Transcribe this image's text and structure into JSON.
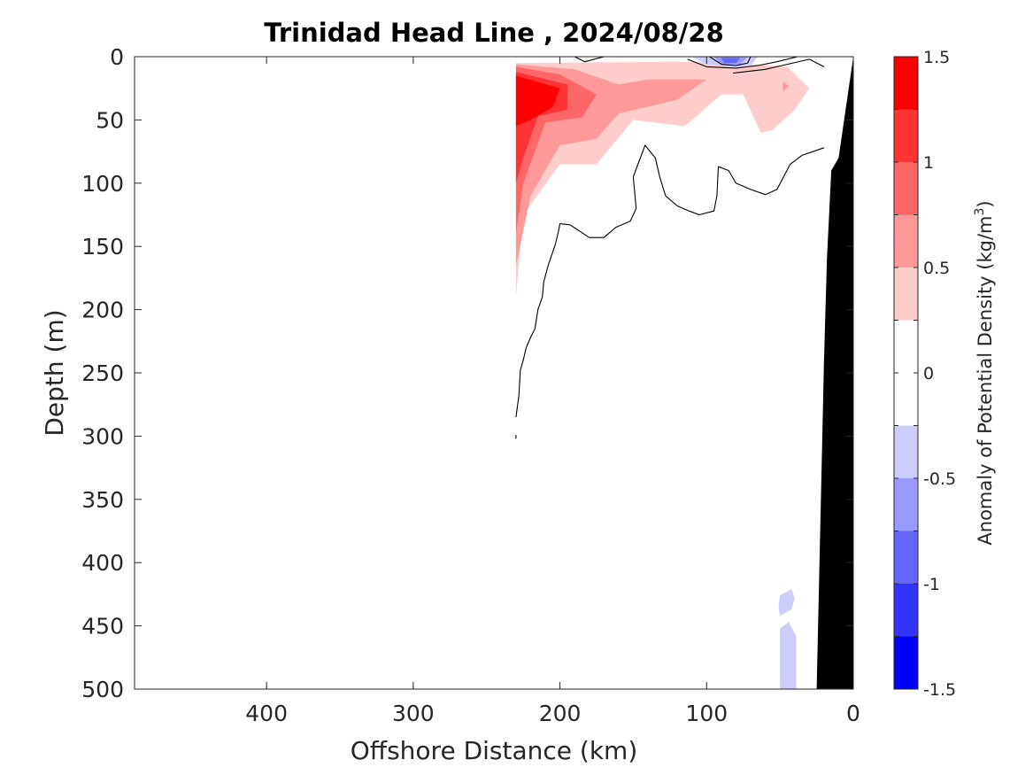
{
  "chart_data": {
    "type": "contour",
    "title": "Trinidad Head Line , 2024/08/28",
    "xlabel": "Offshore Distance (km)",
    "ylabel": "Depth (m)",
    "xlim": [
      490,
      0
    ],
    "ylim": [
      0,
      500
    ],
    "xticks": [
      400,
      300,
      200,
      100,
      0
    ],
    "yticks": [
      0,
      50,
      100,
      150,
      200,
      250,
      300,
      350,
      400,
      450,
      500
    ],
    "colorbar": {
      "label": "Anomaly of Potential Density (kg/m",
      "label_sup": "3",
      "label_close": ")",
      "range": [
        -1.5,
        1.5
      ],
      "ticks": [
        "1.5",
        "1",
        "0.5",
        "0",
        "-0.5",
        "-1",
        "-1.5"
      ],
      "levels": [
        -1.5,
        -1.25,
        -1.0,
        -0.75,
        -0.5,
        -0.25,
        0.0,
        0.25,
        0.5,
        0.75,
        1.0,
        1.25,
        1.5
      ],
      "colors": [
        "#0000ff",
        "#3333ff",
        "#6666ff",
        "#9999ff",
        "#ccccff",
        "#ffffff",
        "#ffffff",
        "#ffcccc",
        "#ff9999",
        "#ff6666",
        "#ff3333",
        "#ff0000"
      ]
    },
    "filled_regions": [
      {
        "level": 0.25,
        "color": "#ffcccc",
        "points": [
          [
            230,
            5
          ],
          [
            120,
            4
          ],
          [
            80,
            5
          ],
          [
            45,
            8
          ],
          [
            30,
            25
          ],
          [
            40,
            42
          ],
          [
            55,
            58
          ],
          [
            63,
            60
          ],
          [
            75,
            30
          ],
          [
            90,
            30
          ],
          [
            115,
            55
          ],
          [
            150,
            50
          ],
          [
            175,
            85
          ],
          [
            200,
            85
          ],
          [
            225,
            125
          ],
          [
            230,
            190
          ]
        ]
      },
      {
        "level": 0.5,
        "color": "#ff9999",
        "points": [
          [
            230,
            6
          ],
          [
            190,
            10
          ],
          [
            160,
            22
          ],
          [
            140,
            18
          ],
          [
            100,
            18
          ],
          [
            120,
            34
          ],
          [
            160,
            45
          ],
          [
            175,
            65
          ],
          [
            200,
            70
          ],
          [
            220,
            110
          ],
          [
            230,
            165
          ]
        ]
      },
      {
        "level": 0.5,
        "color": "#ff9999",
        "points": [
          [
            130,
            20
          ],
          [
            115,
            23
          ],
          [
            130,
            35
          ]
        ]
      },
      {
        "level": 0.75,
        "color": "#ff6666",
        "points": [
          [
            230,
            8
          ],
          [
            200,
            14
          ],
          [
            175,
            30
          ],
          [
            185,
            48
          ],
          [
            210,
            52
          ],
          [
            225,
            100
          ],
          [
            230,
            140
          ]
        ]
      },
      {
        "level": 1.0,
        "color": "#ff3333",
        "points": [
          [
            230,
            12
          ],
          [
            195,
            22
          ],
          [
            195,
            42
          ],
          [
            215,
            47
          ],
          [
            225,
            80
          ],
          [
            230,
            100
          ]
        ]
      },
      {
        "level": 1.25,
        "color": "#ff0000",
        "points": [
          [
            230,
            15
          ],
          [
            200,
            25
          ],
          [
            205,
            40
          ],
          [
            220,
            50
          ],
          [
            230,
            55
          ]
        ]
      },
      {
        "level": 0.5,
        "color": "#ff9999",
        "points": [
          [
            48,
            20
          ],
          [
            44,
            23
          ],
          [
            48,
            28
          ]
        ]
      },
      {
        "level": -0.25,
        "color": "#ccccff",
        "points": [
          [
            110,
            0
          ],
          [
            65,
            0
          ],
          [
            70,
            7
          ],
          [
            80,
            8
          ],
          [
            100,
            6
          ]
        ]
      },
      {
        "level": -0.5,
        "color": "#9999ff",
        "points": [
          [
            95,
            0
          ],
          [
            72,
            0
          ],
          [
            77,
            6
          ],
          [
            90,
            6
          ]
        ]
      },
      {
        "level": -0.75,
        "color": "#6666ff",
        "points": [
          [
            90,
            1
          ],
          [
            77,
            1
          ],
          [
            80,
            5
          ],
          [
            88,
            5
          ]
        ]
      },
      {
        "level": -0.25,
        "color": "#ccccff",
        "points": [
          [
            50,
            426
          ],
          [
            42,
            421
          ],
          [
            40,
            428
          ],
          [
            42,
            437
          ],
          [
            50,
            442
          ],
          [
            51,
            435
          ]
        ]
      },
      {
        "level": -0.25,
        "color": "#ccccff",
        "points": [
          [
            50,
            452
          ],
          [
            44,
            447
          ],
          [
            39,
            458
          ],
          [
            39,
            500
          ],
          [
            50,
            500
          ]
        ]
      }
    ],
    "contour_lines": [
      {
        "level": 0,
        "points": [
          [
            230,
            285
          ],
          [
            228,
            268
          ],
          [
            227,
            248
          ],
          [
            225,
            240
          ],
          [
            223,
            230
          ],
          [
            220,
            222
          ],
          [
            217,
            215
          ],
          [
            215,
            200
          ],
          [
            212,
            190
          ],
          [
            211,
            178
          ],
          [
            208,
            165
          ],
          [
            203,
            148
          ],
          [
            201,
            138
          ],
          [
            200,
            132
          ],
          [
            193,
            133
          ],
          [
            180,
            143
          ],
          [
            170,
            143
          ],
          [
            162,
            135
          ],
          [
            152,
            130
          ],
          [
            148,
            120
          ],
          [
            150,
            95
          ],
          [
            142,
            70
          ],
          [
            135,
            80
          ],
          [
            132,
            95
          ],
          [
            128,
            110
          ],
          [
            120,
            118
          ],
          [
            112,
            122
          ],
          [
            105,
            125
          ],
          [
            95,
            122
          ],
          [
            93,
            110
          ],
          [
            92,
            87
          ],
          [
            85,
            90
          ],
          [
            80,
            100
          ],
          [
            70,
            105
          ],
          [
            60,
            109
          ],
          [
            52,
            105
          ],
          [
            43,
            85
          ],
          [
            35,
            78
          ],
          [
            20,
            72
          ]
        ]
      },
      {
        "level": 0,
        "points": [
          [
            230,
            299
          ],
          [
            230,
            302
          ]
        ]
      },
      {
        "level": 0,
        "points": [
          [
            190,
            0
          ],
          [
            183,
            4
          ],
          [
            170,
            0
          ]
        ]
      },
      {
        "level": 0,
        "points": [
          [
            113,
            2
          ],
          [
            100,
            8
          ],
          [
            80,
            9
          ],
          [
            65,
            7
          ],
          [
            52,
            4
          ],
          [
            38,
            0
          ]
        ]
      },
      {
        "level": 0,
        "points": [
          [
            82,
            13
          ],
          [
            60,
            10
          ],
          [
            45,
            6
          ],
          [
            30,
            2
          ],
          [
            20,
            8
          ]
        ]
      },
      {
        "level": -0.25,
        "points": [
          [
            98,
            0
          ],
          [
            90,
            6
          ],
          [
            80,
            7
          ],
          [
            72,
            5
          ],
          [
            70,
            0
          ]
        ]
      }
    ],
    "bathymetry": {
      "color": "#000000",
      "points": [
        [
          0,
          0
        ],
        [
          10,
          80
        ],
        [
          15,
          90
        ],
        [
          18,
          160
        ],
        [
          20,
          240
        ],
        [
          25,
          500
        ],
        [
          0,
          500
        ]
      ]
    }
  }
}
